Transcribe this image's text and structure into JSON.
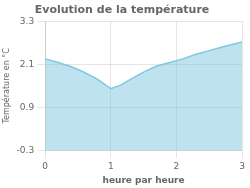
{
  "chart_data": {
    "type": "area",
    "title": "Evolution de la température",
    "xlabel": "heure par heure",
    "ylabel": "Température en °C",
    "x": [
      0,
      0.2,
      0.4,
      0.6,
      0.8,
      1.0,
      1.15,
      1.3,
      1.5,
      1.7,
      1.9,
      2.1,
      2.3,
      2.5,
      2.7,
      3.0
    ],
    "values": [
      2.25,
      2.15,
      2.03,
      1.87,
      1.68,
      1.42,
      1.52,
      1.68,
      1.88,
      2.05,
      2.15,
      2.25,
      2.38,
      2.48,
      2.58,
      2.72
    ],
    "color": "#7ec8e0",
    "xlim": [
      0,
      3
    ],
    "xticks": [
      0,
      1,
      2,
      3
    ],
    "ylim": [
      -0.3,
      3.3
    ],
    "yticks": [
      -0.3,
      0.9,
      2.1,
      3.3
    ],
    "grid": true
  }
}
